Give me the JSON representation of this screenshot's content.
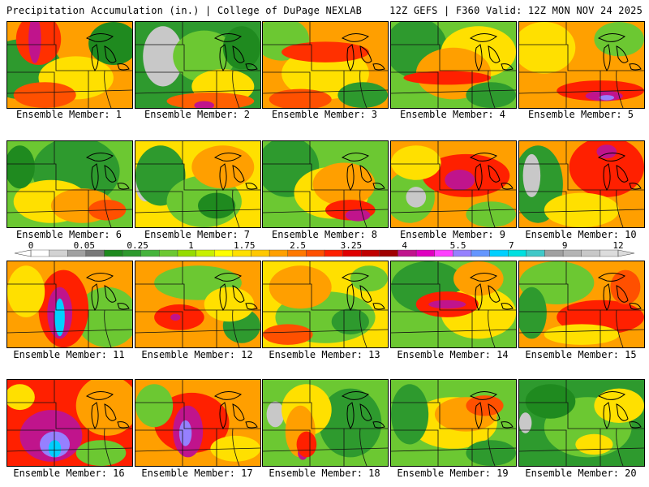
{
  "header": {
    "title": "Precipitation Accumulation (in.) | College of DuPage NEXLAB",
    "run_info": "12Z GEFS | F360 Valid: 12Z MON NOV 24 2025"
  },
  "panels": [
    {
      "label": "Ensemble Member: 1",
      "base": "#ff9f00",
      "blobs": [
        [
          "#2e9a2e",
          0.12,
          0.55,
          0.32,
          0.35
        ],
        [
          "#1f8a1f",
          0.85,
          0.25,
          0.2,
          0.25
        ],
        [
          "#ffe000",
          0.55,
          0.65,
          0.3,
          0.25
        ],
        [
          "#ff3000",
          0.25,
          0.2,
          0.18,
          0.3
        ],
        [
          "#c0148c",
          0.22,
          0.2,
          0.05,
          0.28
        ],
        [
          "#ff5000",
          0.3,
          0.85,
          0.25,
          0.15
        ]
      ]
    },
    {
      "label": "Ensemble Member: 2",
      "base": "#2e9a2e",
      "blobs": [
        [
          "#c8c8c8",
          0.22,
          0.4,
          0.16,
          0.35
        ],
        [
          "#6cc832",
          0.55,
          0.4,
          0.25,
          0.3
        ],
        [
          "#ffe000",
          0.7,
          0.75,
          0.25,
          0.2
        ],
        [
          "#ff6000",
          0.6,
          0.92,
          0.35,
          0.1
        ],
        [
          "#c0148c",
          0.55,
          0.97,
          0.08,
          0.05
        ],
        [
          "#1f8a1f",
          0.85,
          0.3,
          0.15,
          0.25
        ]
      ]
    },
    {
      "label": "Ensemble Member: 3",
      "base": "#ff9f00",
      "blobs": [
        [
          "#6cc832",
          0.15,
          0.2,
          0.22,
          0.25
        ],
        [
          "#ffe000",
          0.5,
          0.6,
          0.35,
          0.3
        ],
        [
          "#ff3000",
          0.5,
          0.35,
          0.35,
          0.12
        ],
        [
          "#2e9a2e",
          0.8,
          0.85,
          0.2,
          0.15
        ],
        [
          "#ff5000",
          0.3,
          0.9,
          0.25,
          0.12
        ]
      ]
    },
    {
      "label": "Ensemble Member: 4",
      "base": "#6cc832",
      "blobs": [
        [
          "#2e9a2e",
          0.2,
          0.3,
          0.25,
          0.35
        ],
        [
          "#ffe000",
          0.7,
          0.35,
          0.3,
          0.3
        ],
        [
          "#ff9f00",
          0.5,
          0.6,
          0.3,
          0.3
        ],
        [
          "#ff2000",
          0.45,
          0.65,
          0.35,
          0.08
        ],
        [
          "#2e9a2e",
          0.8,
          0.85,
          0.2,
          0.15
        ]
      ]
    },
    {
      "label": "Ensemble Member: 5",
      "base": "#ffa000",
      "blobs": [
        [
          "#ffe000",
          0.2,
          0.3,
          0.25,
          0.3
        ],
        [
          "#6cc832",
          0.8,
          0.2,
          0.2,
          0.2
        ],
        [
          "#ff2000",
          0.65,
          0.8,
          0.35,
          0.12
        ],
        [
          "#c0148c",
          0.68,
          0.86,
          0.15,
          0.06
        ],
        [
          "#9680ff",
          0.7,
          0.88,
          0.06,
          0.03
        ]
      ]
    },
    {
      "label": "Ensemble Member: 6",
      "base": "#6cc832",
      "blobs": [
        [
          "#2e9a2e",
          0.55,
          0.35,
          0.35,
          0.4
        ],
        [
          "#ffe000",
          0.35,
          0.7,
          0.3,
          0.25
        ],
        [
          "#ff9f00",
          0.6,
          0.75,
          0.25,
          0.2
        ],
        [
          "#1f8a1f",
          0.1,
          0.3,
          0.12,
          0.25
        ],
        [
          "#ff5000",
          0.8,
          0.8,
          0.15,
          0.12
        ]
      ]
    },
    {
      "label": "Ensemble Member: 7",
      "base": "#ffe000",
      "blobs": [
        [
          "#c8c8c8",
          0.08,
          0.5,
          0.08,
          0.2
        ],
        [
          "#2e9a2e",
          0.2,
          0.4,
          0.2,
          0.35
        ],
        [
          "#6cc832",
          0.55,
          0.7,
          0.3,
          0.3
        ],
        [
          "#ff9f00",
          0.7,
          0.3,
          0.25,
          0.25
        ],
        [
          "#1f8a1f",
          0.65,
          0.75,
          0.15,
          0.15
        ]
      ]
    },
    {
      "label": "Ensemble Member: 8",
      "base": "#6cc832",
      "blobs": [
        [
          "#2e9a2e",
          0.2,
          0.3,
          0.25,
          0.35
        ],
        [
          "#ffe000",
          0.55,
          0.6,
          0.3,
          0.3
        ],
        [
          "#ff9f00",
          0.65,
          0.5,
          0.25,
          0.25
        ],
        [
          "#ff2000",
          0.7,
          0.8,
          0.2,
          0.12
        ],
        [
          "#c0148c",
          0.76,
          0.86,
          0.1,
          0.07
        ]
      ]
    },
    {
      "label": "Ensemble Member: 9",
      "base": "#ff9f00",
      "blobs": [
        [
          "#6cc832",
          0.15,
          0.65,
          0.2,
          0.3
        ],
        [
          "#c8c8c8",
          0.2,
          0.65,
          0.08,
          0.12
        ],
        [
          "#ff2000",
          0.6,
          0.4,
          0.35,
          0.25
        ],
        [
          "#c0148c",
          0.55,
          0.45,
          0.12,
          0.12
        ],
        [
          "#ffe000",
          0.2,
          0.25,
          0.2,
          0.2
        ],
        [
          "#6cc832",
          0.8,
          0.85,
          0.2,
          0.15
        ]
      ]
    },
    {
      "label": "Ensemble Member: 10",
      "base": "#ff9f00",
      "blobs": [
        [
          "#2e9a2e",
          0.15,
          0.5,
          0.2,
          0.45
        ],
        [
          "#c8c8c8",
          0.1,
          0.4,
          0.07,
          0.25
        ],
        [
          "#ff2000",
          0.7,
          0.3,
          0.3,
          0.35
        ],
        [
          "#c0148c",
          0.7,
          0.12,
          0.08,
          0.08
        ],
        [
          "#ffe000",
          0.5,
          0.8,
          0.3,
          0.2
        ]
      ]
    },
    {
      "label": "Ensemble Member: 11",
      "base": "#ffa000",
      "blobs": [
        [
          "#6cc832",
          0.8,
          0.65,
          0.25,
          0.35
        ],
        [
          "#ff2000",
          0.45,
          0.55,
          0.2,
          0.45
        ],
        [
          "#c0148c",
          0.42,
          0.6,
          0.1,
          0.3
        ],
        [
          "#00d0ff",
          0.42,
          0.65,
          0.04,
          0.22
        ],
        [
          "#ffe000",
          0.15,
          0.35,
          0.15,
          0.3
        ]
      ]
    },
    {
      "label": "Ensemble Member: 12",
      "base": "#ff9f00",
      "blobs": [
        [
          "#6cc832",
          0.5,
          0.25,
          0.35,
          0.2
        ],
        [
          "#2e9a2e",
          0.85,
          0.75,
          0.15,
          0.2
        ],
        [
          "#ff2000",
          0.35,
          0.65,
          0.2,
          0.15
        ],
        [
          "#c0148c",
          0.32,
          0.65,
          0.04,
          0.04
        ],
        [
          "#ffe000",
          0.75,
          0.5,
          0.2,
          0.2
        ]
      ]
    },
    {
      "label": "Ensemble Member: 13",
      "base": "#ffe000",
      "blobs": [
        [
          "#6cc832",
          0.5,
          0.65,
          0.4,
          0.3
        ],
        [
          "#ff9f00",
          0.3,
          0.3,
          0.25,
          0.25
        ],
        [
          "#2e9a2e",
          0.7,
          0.7,
          0.15,
          0.15
        ],
        [
          "#ff5000",
          0.2,
          0.85,
          0.2,
          0.12
        ],
        [
          "#6cc832",
          0.85,
          0.2,
          0.15,
          0.15
        ]
      ]
    },
    {
      "label": "Ensemble Member: 14",
      "base": "#6cc832",
      "blobs": [
        [
          "#2e9a2e",
          0.3,
          0.3,
          0.3,
          0.3
        ],
        [
          "#ffe000",
          0.7,
          0.6,
          0.3,
          0.3
        ],
        [
          "#ff2000",
          0.45,
          0.5,
          0.25,
          0.15
        ],
        [
          "#c0148c",
          0.45,
          0.5,
          0.15,
          0.05
        ],
        [
          "#ff9f00",
          0.7,
          0.2,
          0.2,
          0.2
        ]
      ]
    },
    {
      "label": "Ensemble Member: 15",
      "base": "#ff9f00",
      "blobs": [
        [
          "#6cc832",
          0.3,
          0.25,
          0.3,
          0.25
        ],
        [
          "#2e9a2e",
          0.1,
          0.6,
          0.12,
          0.3
        ],
        [
          "#ff2000",
          0.65,
          0.65,
          0.35,
          0.2
        ],
        [
          "#ffe000",
          0.5,
          0.85,
          0.3,
          0.12
        ],
        [
          "#ff5000",
          0.85,
          0.3,
          0.12,
          0.2
        ]
      ]
    },
    {
      "label": "Ensemble Member: 16",
      "base": "#ff2000",
      "blobs": [
        [
          "#ff9f00",
          0.8,
          0.3,
          0.25,
          0.35
        ],
        [
          "#c0148c",
          0.35,
          0.65,
          0.25,
          0.3
        ],
        [
          "#9680ff",
          0.38,
          0.75,
          0.12,
          0.15
        ],
        [
          "#00d0ff",
          0.38,
          0.8,
          0.05,
          0.1
        ],
        [
          "#6cc832",
          0.75,
          0.85,
          0.2,
          0.15
        ],
        [
          "#ffe000",
          0.1,
          0.2,
          0.12,
          0.15
        ]
      ]
    },
    {
      "label": "Ensemble Member: 17",
      "base": "#ff9f00",
      "blobs": [
        [
          "#ff2000",
          0.45,
          0.5,
          0.3,
          0.35
        ],
        [
          "#c0148c",
          0.42,
          0.6,
          0.12,
          0.3
        ],
        [
          "#9680ff",
          0.4,
          0.62,
          0.05,
          0.15
        ],
        [
          "#6cc832",
          0.15,
          0.3,
          0.15,
          0.25
        ],
        [
          "#ffe000",
          0.8,
          0.8,
          0.2,
          0.15
        ]
      ]
    },
    {
      "label": "Ensemble Member: 18",
      "base": "#6cc832",
      "blobs": [
        [
          "#c8c8c8",
          0.1,
          0.4,
          0.07,
          0.15
        ],
        [
          "#2e9a2e",
          0.7,
          0.5,
          0.25,
          0.4
        ],
        [
          "#ffe000",
          0.35,
          0.35,
          0.2,
          0.3
        ],
        [
          "#ff9f00",
          0.3,
          0.6,
          0.12,
          0.3
        ],
        [
          "#c0148c",
          0.32,
          0.85,
          0.04,
          0.08
        ],
        [
          "#ff2000",
          0.35,
          0.75,
          0.08,
          0.15
        ]
      ]
    },
    {
      "label": "Ensemble Member: 19",
      "base": "#6cc832",
      "blobs": [
        [
          "#ffe000",
          0.5,
          0.5,
          0.35,
          0.3
        ],
        [
          "#ff9f00",
          0.6,
          0.4,
          0.25,
          0.2
        ],
        [
          "#2e9a2e",
          0.15,
          0.4,
          0.15,
          0.35
        ],
        [
          "#ff5000",
          0.75,
          0.3,
          0.15,
          0.12
        ],
        [
          "#2e9a2e",
          0.8,
          0.85,
          0.2,
          0.15
        ]
      ]
    },
    {
      "label": "Ensemble Member: 20",
      "base": "#2e9a2e",
      "blobs": [
        [
          "#6cc832",
          0.55,
          0.55,
          0.35,
          0.35
        ],
        [
          "#ffe000",
          0.8,
          0.3,
          0.2,
          0.2
        ],
        [
          "#c8c8c8",
          0.05,
          0.5,
          0.05,
          0.12
        ],
        [
          "#1f8a1f",
          0.25,
          0.25,
          0.2,
          0.2
        ],
        [
          "#ffe000",
          0.6,
          0.75,
          0.15,
          0.12
        ]
      ]
    }
  ],
  "color_scale": {
    "labels": [
      "0",
      "0.05",
      "0.25",
      "1",
      "1.75",
      "2.5",
      "3.25",
      "4",
      "5.5",
      "7",
      "9",
      "12"
    ],
    "colors": [
      "#ffffff",
      "#d2d2d2",
      "#a0a0a0",
      "#787878",
      "#1f8a1f",
      "#2e9a2e",
      "#46b43c",
      "#6cc832",
      "#96dc00",
      "#c8f000",
      "#ffff00",
      "#ffe000",
      "#ffc800",
      "#ffa000",
      "#ff7800",
      "#ff5000",
      "#ff2000",
      "#e00000",
      "#c00000",
      "#a00000",
      "#c0148c",
      "#e000c0",
      "#ff40ff",
      "#9680ff",
      "#6496ff",
      "#00d0ff",
      "#00e0e0",
      "#40c8c8",
      "#a0a0a0",
      "#b4b4b4",
      "#c8c8c8",
      "#dcdcdc"
    ]
  }
}
